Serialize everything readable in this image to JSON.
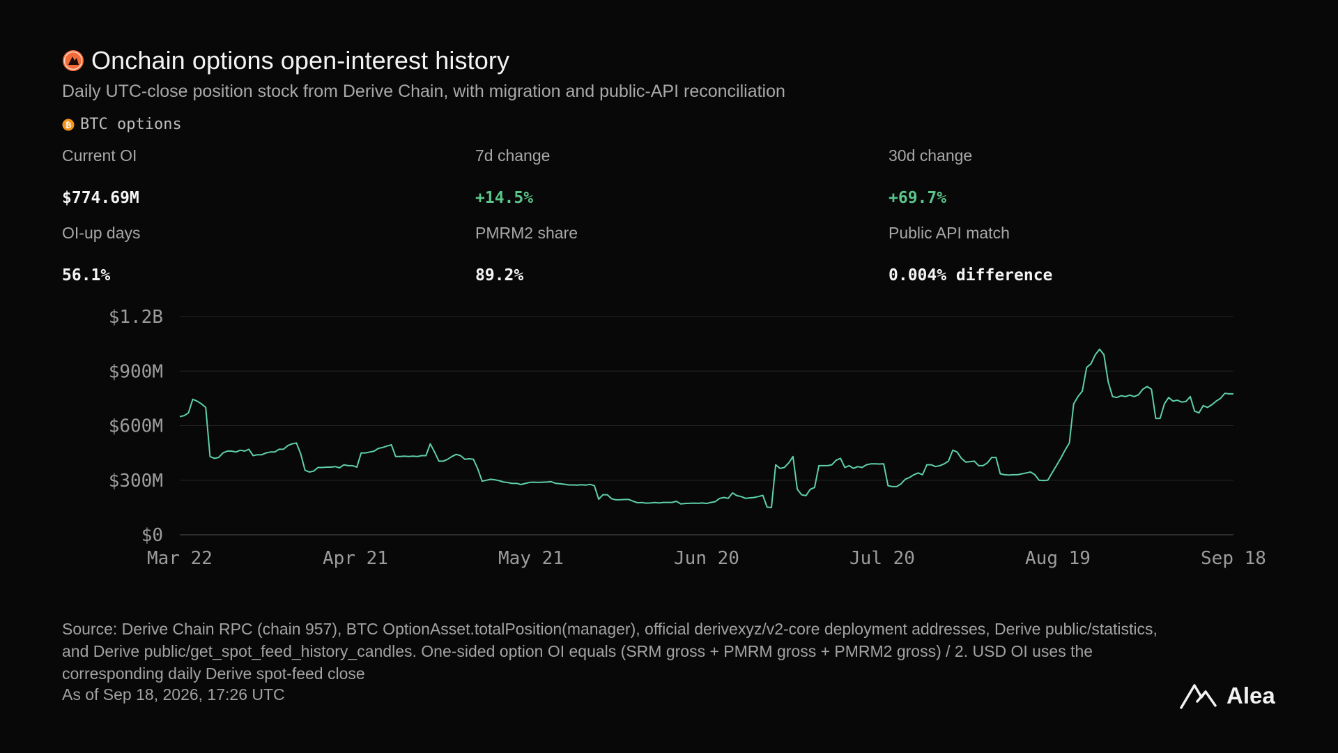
{
  "header": {
    "title": "Onchain options open-interest history",
    "subtitle": "Daily UTC-close position stock from Derive Chain, with migration and public-API reconciliation",
    "series_tag": "BTC options",
    "icon": "derive-flame-icon",
    "btc_icon": "bitcoin-icon"
  },
  "stats": [
    {
      "label": "Current OI",
      "value": "$774.69M",
      "positive": false
    },
    {
      "label": "7d change",
      "value": "+14.5%",
      "positive": true
    },
    {
      "label": "30d change",
      "value": "+69.7%",
      "positive": true
    },
    {
      "label": "OI-up days",
      "value": "56.1%",
      "positive": false
    },
    {
      "label": "PMRM2 share",
      "value": "89.2%",
      "positive": false
    },
    {
      "label": "Public API match",
      "value": "0.004% difference",
      "positive": false
    }
  ],
  "footer": {
    "source": "Source: Derive Chain RPC (chain 957), BTC OptionAsset.totalPosition(manager), official derivexyz/v2-core deployment addresses, Derive public/statistics, and Derive public/get_spot_feed_history_candles. One-sided option OI equals (SRM gross + PMRM gross + PMRM2 gross) / 2. USD OI uses the corresponding daily Derive spot-feed close",
    "as_of": "As of Sep 18, 2026, 17:26 UTC",
    "logo_text": "Alea",
    "logo_icon": "alea-logo-icon"
  },
  "colors": {
    "line": "#5fd0a8",
    "grid": "#262626",
    "positive": "#5bc58a",
    "brand": "#f26b3a",
    "btc": "#f7931a"
  },
  "chart_data": {
    "type": "line",
    "x_ticks": [
      "Mar 22",
      "Apr 21",
      "May 21",
      "Jun 20",
      "Jul 20",
      "Aug 19",
      "Sep 18"
    ],
    "y_ticks": [
      "$0",
      "$300M",
      "$600M",
      "$900M",
      "$1.2B"
    ],
    "ylim": [
      0,
      1200
    ],
    "y_unit": "$M",
    "x_start": "2026-03-22",
    "x_end": "2026-09-18",
    "grid": true,
    "series": [
      {
        "values": [
          650,
          655,
          670,
          745,
          735,
          720,
          700,
          430,
          420,
          425,
          450,
          460,
          460,
          455,
          465,
          460,
          470,
          435,
          440,
          440,
          450,
          455,
          455,
          470,
          470,
          490,
          500,
          505,
          445,
          355,
          345,
          350,
          370,
          370,
          372,
          372,
          375,
          368,
          385,
          380,
          380,
          372,
          450,
          450,
          455,
          460,
          475,
          480,
          488,
          495,
          430,
          430,
          432,
          430,
          432,
          430,
          435,
          435,
          500,
          455,
          405,
          405,
          415,
          430,
          442,
          435,
          415,
          418,
          415,
          362,
          295,
          300,
          305,
          302,
          297,
          290,
          287,
          282,
          283,
          276,
          282,
          288,
          289,
          288,
          289,
          290,
          292,
          283,
          281,
          278,
          274,
          274,
          273,
          275,
          273,
          277,
          270,
          195,
          220,
          220,
          198,
          192,
          193,
          194,
          194,
          184,
          176,
          177,
          174,
          175,
          177,
          175,
          178,
          178,
          178,
          184,
          170,
          172,
          173,
          174,
          173,
          175,
          172,
          178,
          182,
          200,
          205,
          200,
          230,
          215,
          210,
          200,
          203,
          205,
          210,
          217,
          152,
          150,
          385,
          365,
          370,
          395,
          430,
          250,
          220,
          215,
          250,
          260,
          380,
          380,
          380,
          385,
          410,
          420,
          370,
          380,
          365,
          375,
          370,
          385,
          390,
          390,
          389,
          390,
          270,
          265,
          265,
          280,
          305,
          315,
          330,
          340,
          330,
          385,
          385,
          375,
          380,
          390,
          405,
          465,
          455,
          420,
          400,
          402,
          405,
          380,
          380,
          395,
          425,
          425,
          335,
          330,
          328,
          330,
          330,
          335,
          340,
          345,
          330,
          300,
          298,
          300,
          340,
          380,
          420,
          465,
          505,
          720,
          760,
          790,
          920,
          940,
          990,
          1020,
          990,
          840,
          760,
          755,
          765,
          760,
          768,
          760,
          770,
          800,
          815,
          800,
          640,
          640,
          720,
          755,
          735,
          740,
          730,
          733,
          760,
          680,
          670,
          710,
          700,
          715,
          735,
          750,
          778,
          775,
          775
        ]
      }
    ]
  }
}
